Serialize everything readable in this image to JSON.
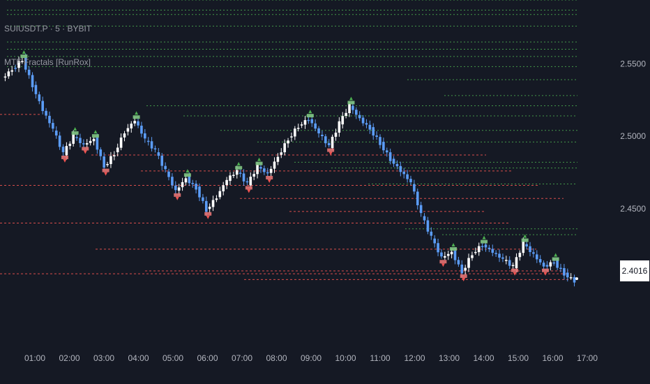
{
  "header": {
    "symbol_line": "SUIUSDT.P · 5 · BYBIT",
    "indicator_line": "MTF Fractals [RunRox]"
  },
  "colors": {
    "background": "#151924",
    "up_candle": "#ffffff",
    "down_candle": "#5b9cf6",
    "bull_fractal": "#4caf50",
    "bear_fractal": "#ef5350",
    "bull_box": "#81c784",
    "bear_box": "#e57373",
    "axis_text": "#b2b5be"
  },
  "chart_data": {
    "type": "candlestick",
    "price_axis": {
      "ticks": [
        "2.5500",
        "2.5000",
        "2.4500"
      ],
      "tick_values": [
        2.55,
        2.5,
        2.45
      ]
    },
    "time_axis": {
      "ticks": [
        "01:00",
        "02:00",
        "03:00",
        "04:00",
        "05:00",
        "06:00",
        "07:00",
        "08:00",
        "09:00",
        "10:00",
        "11:00",
        "12:00",
        "13:00",
        "14:00",
        "15:00",
        "16:00",
        "17:00"
      ]
    },
    "last_price": "2.4016",
    "ylim": [
      2.353,
      2.594
    ],
    "price_path": [
      [
        0,
        2.54
      ],
      [
        1,
        2.546
      ],
      [
        2,
        2.553
      ],
      [
        3,
        2.535
      ],
      [
        4,
        2.518
      ],
      [
        5,
        2.505
      ],
      [
        6,
        2.488
      ],
      [
        7,
        2.5
      ],
      [
        8,
        2.494
      ],
      [
        9,
        2.498
      ],
      [
        10,
        2.479
      ],
      [
        11,
        2.488
      ],
      [
        12,
        2.503
      ],
      [
        13,
        2.511
      ],
      [
        14,
        2.498
      ],
      [
        15,
        2.49
      ],
      [
        16,
        2.476
      ],
      [
        17,
        2.462
      ],
      [
        18,
        2.471
      ],
      [
        19,
        2.464
      ],
      [
        20,
        2.449
      ],
      [
        21,
        2.458
      ],
      [
        22,
        2.47
      ],
      [
        23,
        2.476
      ],
      [
        24,
        2.467
      ],
      [
        25,
        2.479
      ],
      [
        26,
        2.474
      ],
      [
        27,
        2.486
      ],
      [
        28,
        2.498
      ],
      [
        29,
        2.507
      ],
      [
        30,
        2.512
      ],
      [
        31,
        2.502
      ],
      [
        32,
        2.493
      ],
      [
        33,
        2.509
      ],
      [
        34,
        2.521
      ],
      [
        35,
        2.512
      ],
      [
        36,
        2.505
      ],
      [
        37,
        2.495
      ],
      [
        38,
        2.484
      ],
      [
        39,
        2.476
      ],
      [
        40,
        2.468
      ],
      [
        41,
        2.446
      ],
      [
        42,
        2.43
      ],
      [
        43,
        2.416
      ],
      [
        44,
        2.42
      ],
      [
        45,
        2.406
      ],
      [
        46,
        2.419
      ],
      [
        47,
        2.425
      ],
      [
        48,
        2.42
      ],
      [
        49,
        2.415
      ],
      [
        50,
        2.41
      ],
      [
        51,
        2.426
      ],
      [
        52,
        2.418
      ],
      [
        53,
        2.41
      ],
      [
        54,
        2.413
      ],
      [
        55,
        2.405
      ],
      [
        56,
        2.4
      ]
    ],
    "bull_levels": [
      2.594,
      2.587,
      2.584,
      2.576,
      2.565,
      2.56,
      2.555,
      2.548,
      2.539,
      2.528,
      2.521,
      2.514,
      2.504,
      2.496,
      2.482,
      2.478,
      2.467,
      2.436,
      2.432
    ],
    "bear_levels": [
      2.515,
      2.487,
      2.476,
      2.466,
      2.457,
      2.448,
      2.44,
      2.422,
      2.407,
      2.405,
      2.401
    ],
    "grid": false,
    "legend": "none"
  }
}
